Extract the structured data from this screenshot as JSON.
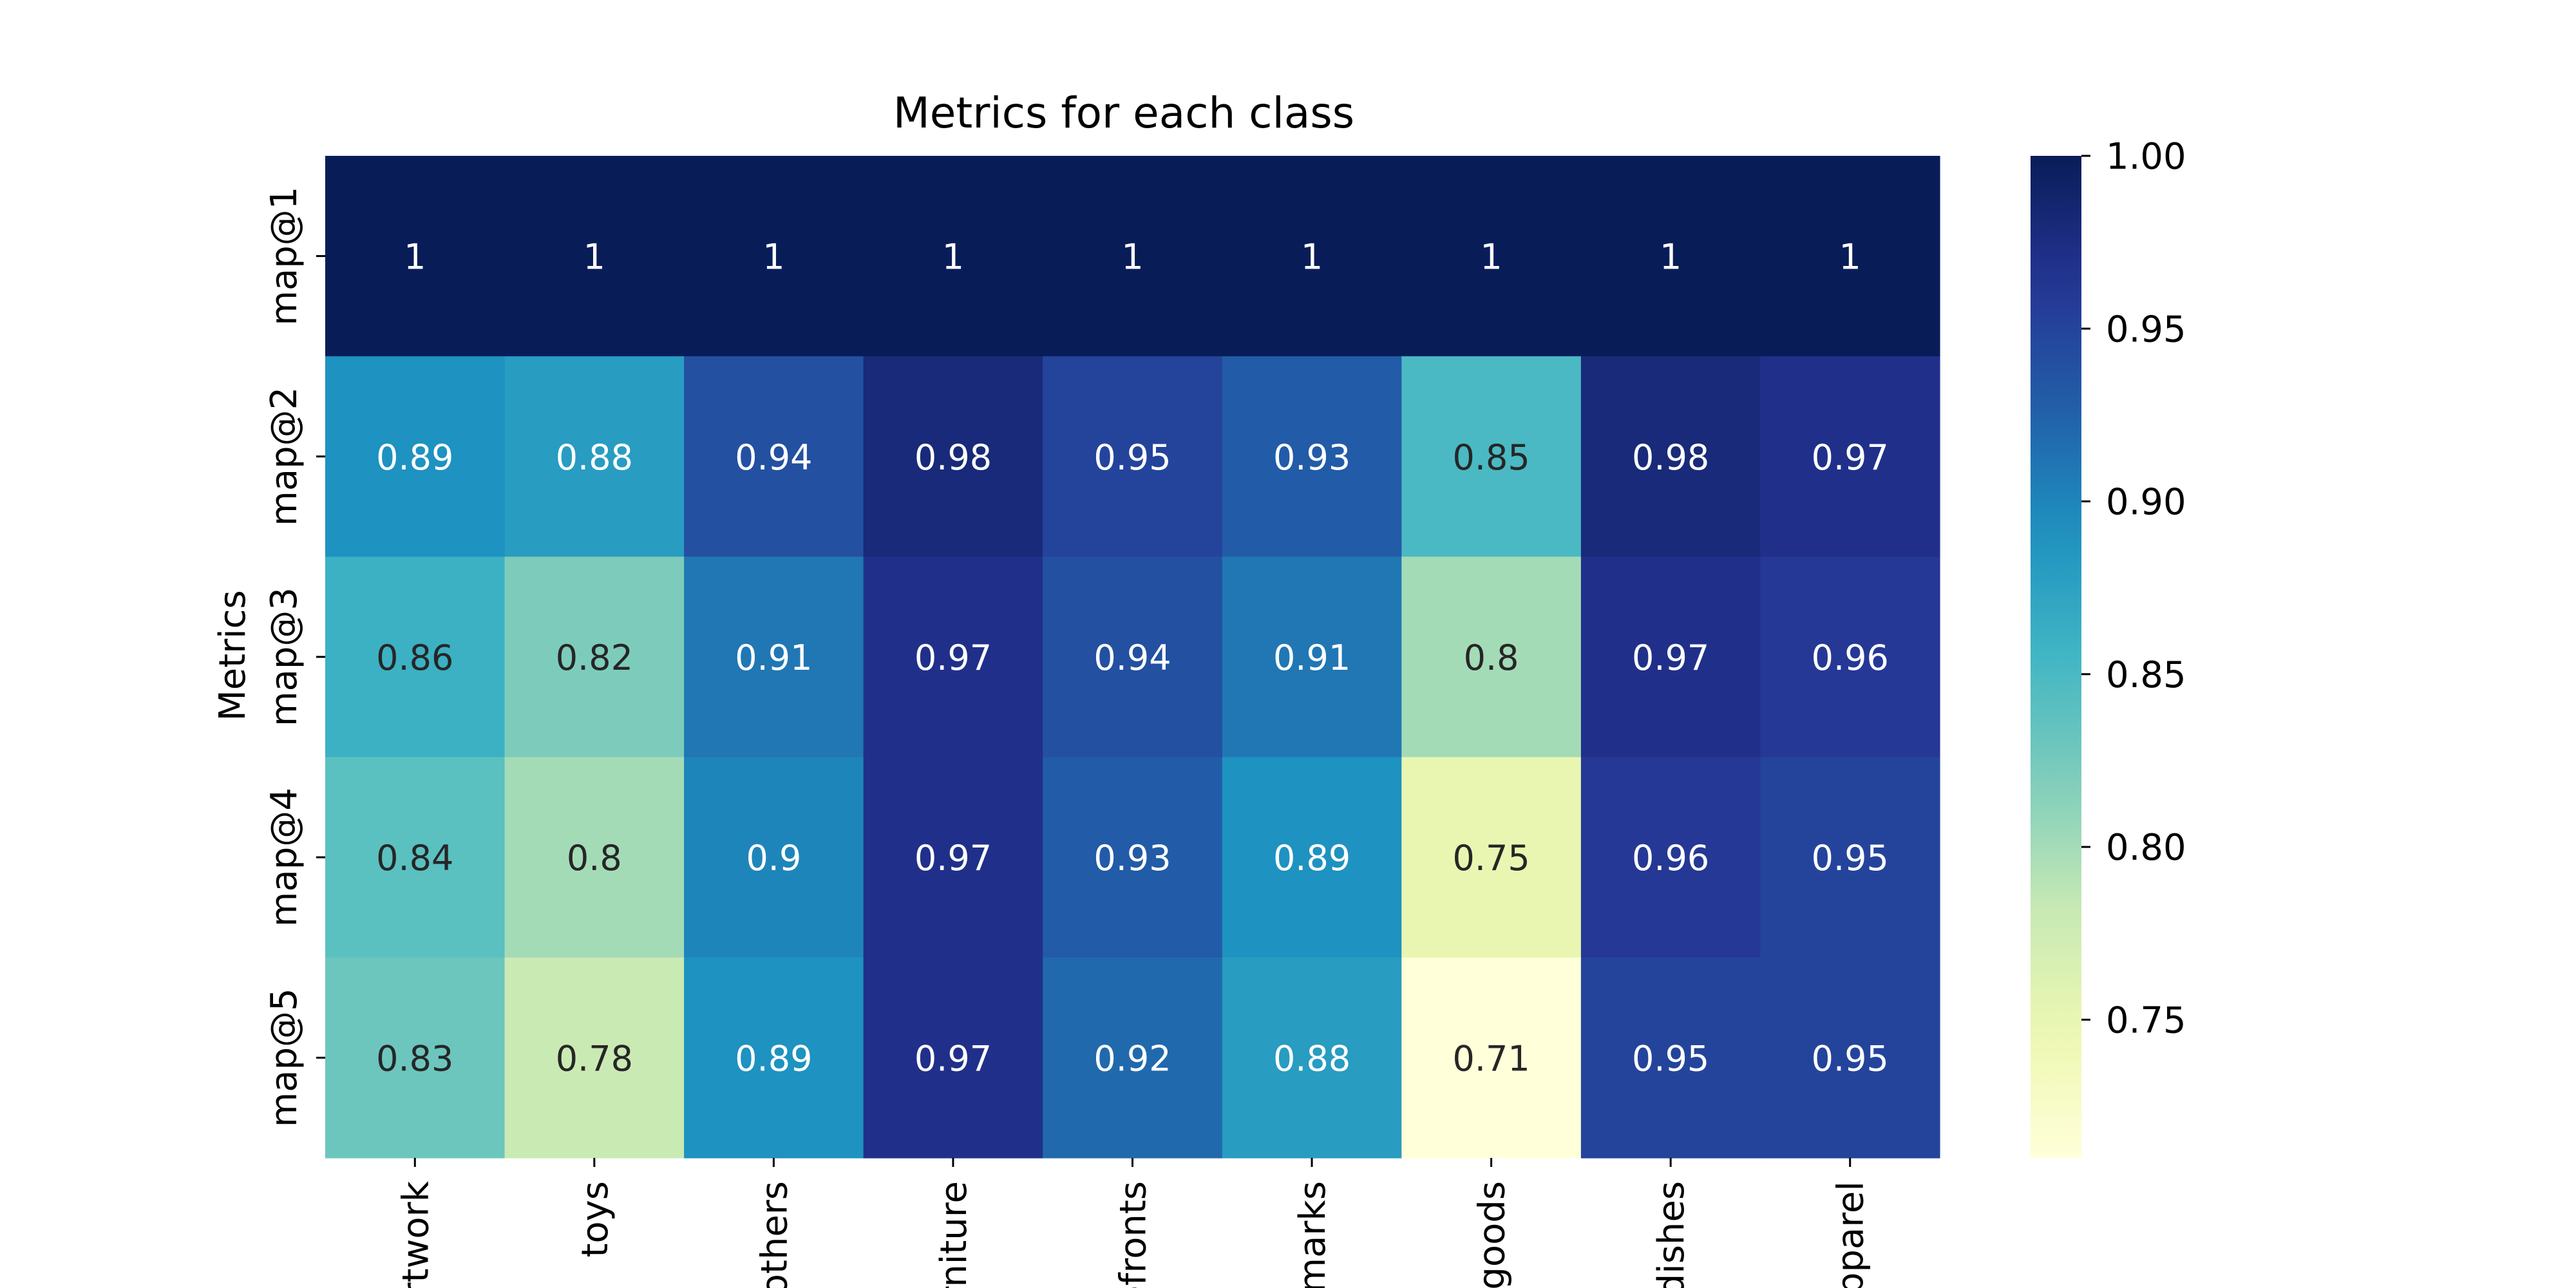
{
  "chart_data": {
    "type": "heatmap",
    "title": "Metrics for each class",
    "ylabel": "Metrics",
    "xlabel": "",
    "rows": [
      "map@1",
      "map@2",
      "map@3",
      "map@4",
      "map@5"
    ],
    "columns": [
      "rtwork",
      "toys",
      "others",
      "rniture",
      "efronts",
      "marks",
      "goods",
      "dishes",
      "pparel"
    ],
    "values": [
      [
        1,
        1,
        1,
        1,
        1,
        1,
        1,
        1,
        1
      ],
      [
        0.89,
        0.88,
        0.94,
        0.98,
        0.95,
        0.93,
        0.85,
        0.98,
        0.97
      ],
      [
        0.86,
        0.82,
        0.91,
        0.97,
        0.94,
        0.91,
        0.8,
        0.97,
        0.96
      ],
      [
        0.84,
        0.8,
        0.9,
        0.97,
        0.93,
        0.89,
        0.75,
        0.96,
        0.95
      ],
      [
        0.83,
        0.78,
        0.89,
        0.97,
        0.92,
        0.88,
        0.71,
        0.95,
        0.95
      ]
    ],
    "colormap": "YlGnBu",
    "colorbar": {
      "range": [
        0.71,
        1.0
      ],
      "ticks": [
        0.75,
        0.8,
        0.85,
        0.9,
        0.95,
        1.0
      ],
      "tick_labels": [
        "0.75",
        "0.80",
        "0.85",
        "0.90",
        "0.95",
        "1.00"
      ]
    }
  }
}
